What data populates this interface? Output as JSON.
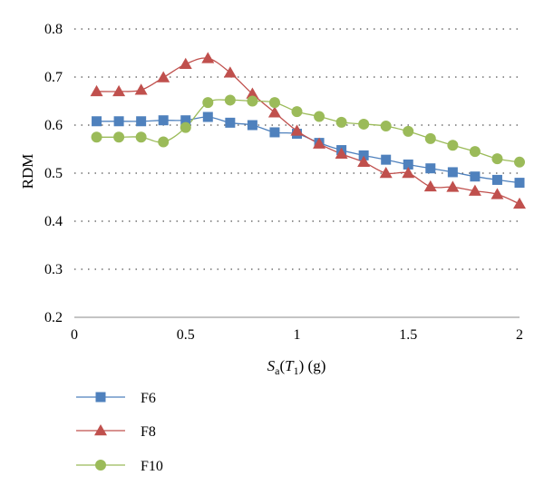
{
  "chart_data": {
    "type": "line",
    "title": "",
    "xlabel": {
      "italic_base": "S",
      "sub_a": "a",
      "paren_open": "(",
      "italic_T": "T",
      "sub_1": "1",
      "paren_close": ")",
      "unit": " (g)"
    },
    "ylabel": "RDM",
    "xlim": [
      0,
      2
    ],
    "ylim": [
      0.2,
      0.8
    ],
    "x_ticks": [
      "0",
      "0.5",
      "1",
      "1.5",
      "2"
    ],
    "y_ticks": [
      "0.2",
      "0.3",
      "0.4",
      "0.5",
      "0.6",
      "0.7",
      "0.8"
    ],
    "grid": "horizontal dotted",
    "legend_placement": "bottom-left",
    "x": [
      0.1,
      0.2,
      0.3,
      0.4,
      0.5,
      0.6,
      0.7,
      0.8,
      0.9,
      1.0,
      1.1,
      1.2,
      1.3,
      1.4,
      1.5,
      1.6,
      1.7,
      1.8,
      1.9,
      2.0
    ],
    "series": [
      {
        "name": "F6",
        "color": "#4f81bd",
        "marker": "square",
        "values": [
          0.608,
          0.608,
          0.608,
          0.61,
          0.61,
          0.617,
          0.605,
          0.6,
          0.585,
          0.582,
          0.563,
          0.548,
          0.537,
          0.528,
          0.518,
          0.51,
          0.502,
          0.493,
          0.486,
          0.48
        ]
      },
      {
        "name": "F8",
        "color": "#c0504d",
        "marker": "triangle",
        "values": [
          0.67,
          0.67,
          0.673,
          0.699,
          0.727,
          0.739,
          0.709,
          0.665,
          0.626,
          0.588,
          0.561,
          0.54,
          0.523,
          0.5,
          0.5,
          0.472,
          0.471,
          0.463,
          0.456,
          0.436
        ]
      },
      {
        "name": "F10",
        "color": "#9bbb59",
        "marker": "circle",
        "values": [
          0.575,
          0.575,
          0.575,
          0.565,
          0.595,
          0.647,
          0.652,
          0.65,
          0.647,
          0.628,
          0.618,
          0.606,
          0.602,
          0.598,
          0.587,
          0.572,
          0.558,
          0.545,
          0.53,
          0.523
        ]
      }
    ]
  }
}
